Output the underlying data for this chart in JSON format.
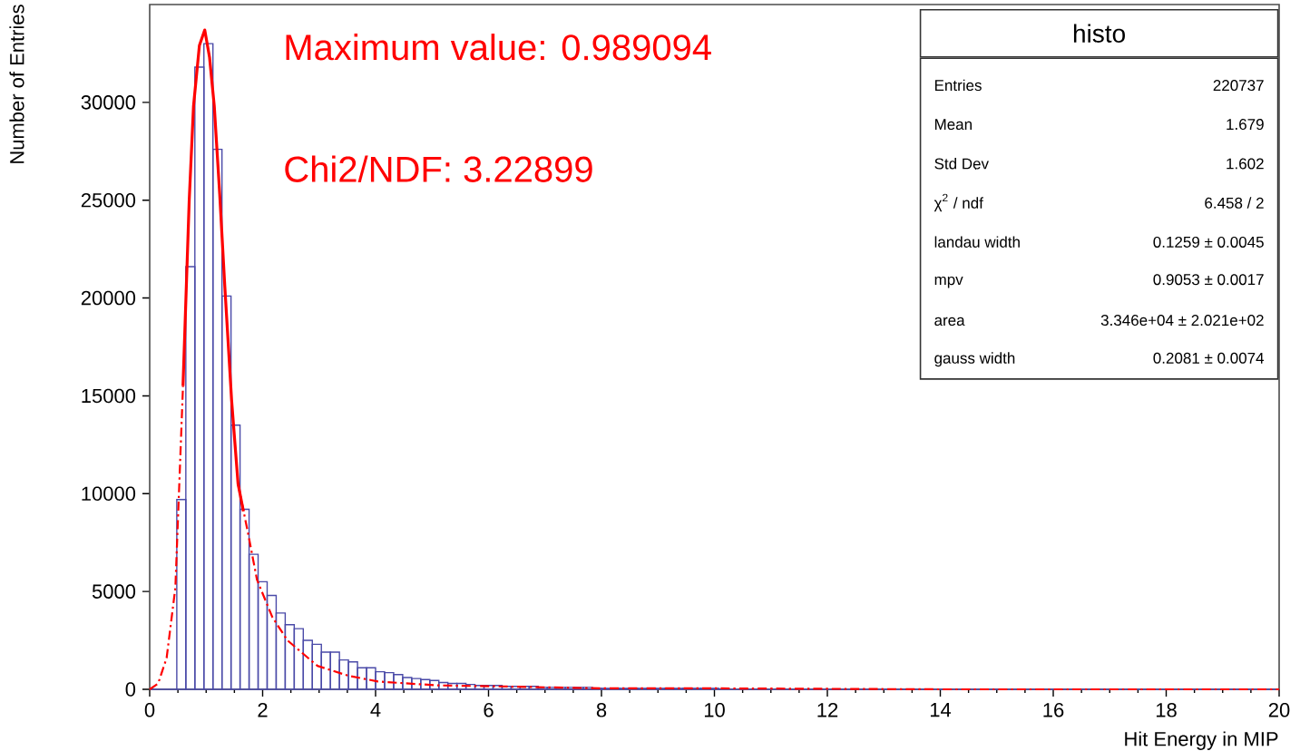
{
  "chart_data": {
    "type": "histogram",
    "xlabel": "Hit Energy in MIP",
    "ylabel": "Number of Entries",
    "xlim": [
      0,
      20
    ],
    "ylim": [
      0,
      35000
    ],
    "xticks": [
      0,
      2,
      4,
      6,
      8,
      10,
      12,
      14,
      16,
      18,
      20
    ],
    "yticks": [
      0,
      5000,
      10000,
      15000,
      20000,
      25000,
      30000
    ],
    "series": [
      {
        "color": "#4a4aa8",
        "bins": [
          0,
          0.16,
          0.32,
          0.48,
          0.64,
          0.8,
          0.96,
          1.12,
          1.28,
          1.44,
          1.6,
          1.76,
          1.92,
          2.08,
          2.24,
          2.4,
          2.56,
          2.72,
          2.88,
          3.04,
          3.2,
          3.36,
          3.52,
          3.68,
          3.84,
          4,
          4.16,
          4.32,
          4.48,
          4.64,
          4.8,
          4.96,
          5.12,
          5.28,
          5.44,
          5.6,
          5.76,
          5.92,
          6.08,
          6.24,
          6.4,
          6.56,
          6.72,
          6.88,
          7.04,
          7.2,
          7.36,
          7.52,
          7.68,
          7.84,
          8,
          8.16,
          8.32,
          8.48,
          8.64,
          8.8,
          8.96,
          9.12,
          9.28,
          9.44,
          9.6,
          9.76,
          9.92,
          10.08,
          10.24,
          10.4,
          10.56,
          10.72,
          10.88,
          11.04,
          11.2,
          11.36,
          11.52,
          11.68,
          11.84,
          12,
          12.16,
          12.32,
          12.48,
          12.64,
          12.8,
          12.96,
          13.12,
          13.28,
          13.44,
          13.6,
          13.76,
          13.92,
          14.08,
          14.24,
          14.4,
          14.56,
          14.72,
          14.88,
          15.04,
          15.2,
          15.36,
          15.52,
          15.68,
          15.84,
          16,
          16.16,
          16.32,
          16.48,
          16.64,
          16.8,
          16.96,
          17.12,
          17.28,
          17.44,
          17.6,
          17.76,
          17.92,
          18.08,
          18.24,
          18.4,
          18.56,
          18.72,
          18.88,
          19.04,
          19.2,
          19.36,
          19.52,
          19.68,
          19.84,
          20
        ],
        "values": [
          0,
          0,
          0,
          9700,
          21600,
          31800,
          33000,
          27600,
          20100,
          13500,
          9200,
          6900,
          5500,
          4800,
          3900,
          3300,
          3100,
          2500,
          2300,
          1900,
          1900,
          1500,
          1400,
          1100,
          1100,
          900,
          850,
          750,
          600,
          550,
          500,
          450,
          350,
          300,
          300,
          250,
          200,
          200,
          200,
          150,
          150,
          150,
          150,
          100,
          100,
          100,
          100,
          100,
          100,
          50,
          50,
          50,
          50,
          50,
          50,
          50,
          50,
          50,
          50,
          50,
          50,
          50,
          50,
          0,
          0,
          0,
          0,
          0,
          0,
          0,
          0,
          0,
          0,
          0,
          0,
          0,
          0,
          0,
          0,
          0,
          0,
          0,
          0,
          0,
          0,
          0,
          0,
          0,
          0,
          0,
          0,
          0,
          0,
          0,
          0,
          0,
          0,
          0,
          0,
          0,
          0,
          0,
          0,
          0,
          0,
          0,
          0,
          0,
          0,
          0,
          0,
          0,
          0,
          0,
          0,
          0,
          0,
          0,
          0,
          0,
          0,
          0,
          0,
          0,
          0
        ]
      },
      {
        "type": "line",
        "color": "#ff0000",
        "line_style": "dashdot",
        "x": [
          0,
          0.15,
          0.3,
          0.455,
          0.59,
          0.7,
          0.776,
          0.88,
          0.975,
          1.06,
          1.144,
          1.24,
          1.33,
          1.45,
          1.565,
          1.74,
          1.9,
          2.17,
          2.44,
          2.97,
          3.51,
          4.04,
          5.11,
          6.18,
          8,
          10,
          14,
          20
        ],
        "values": [
          0,
          300,
          1600,
          5200,
          15500,
          null,
          null,
          null,
          null,
          null,
          null,
          null,
          null,
          null,
          10500,
          8000,
          5600,
          3700,
          2500,
          1200,
          700,
          400,
          200,
          150,
          50,
          50,
          0,
          0
        ]
      },
      {
        "type": "line",
        "color": "#ff0000",
        "line_style": "solid",
        "x": [
          0.59,
          0.7,
          0.776,
          0.88,
          0.975,
          1.06,
          1.144,
          1.24,
          1.33,
          1.45,
          1.565,
          1.66
        ],
        "values": [
          15500,
          25000,
          29800,
          32900,
          33700,
          32300,
          29800,
          25300,
          20600,
          14800,
          10500,
          9100
        ]
      }
    ],
    "annotations": [
      "Maximum value: 0.989094",
      "Chi2/NDF: 3.22899",
      "histo",
      "Entries",
      "220737",
      "Mean",
      "1.679",
      "Std Dev",
      "1.602",
      "χ$^{2}$ / ndf",
      "6.458 / 2",
      "landau width",
      "0.1259 ± 0.0045",
      "mpv",
      "0.9053 ± 0.0017",
      "area",
      "3.346e+04 ± 2.021e+02",
      "gauss width",
      "0.2081 ± 0.0074"
    ]
  }
}
